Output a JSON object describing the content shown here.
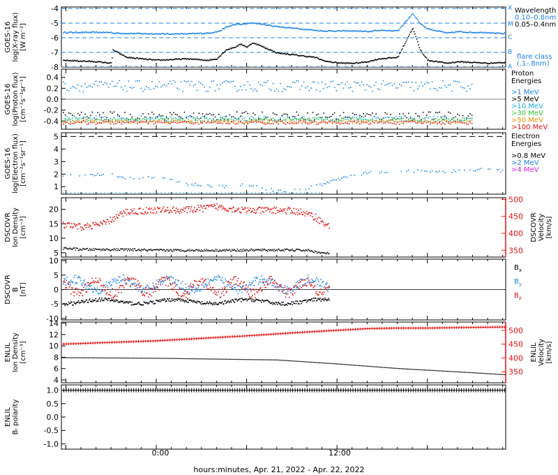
{
  "figure": {
    "xlabel": "hours:minutes, Apr. 21, 2022 - Apr. 22, 2022",
    "x_ticks": [
      "0:00",
      "12:00"
    ],
    "x_range_hours": [
      -6.3,
      23.2
    ]
  },
  "colors": {
    "black": "#000000",
    "blue": "#1b82e6",
    "cyan": "#17b3e6",
    "green": "#2ec83a",
    "orange": "#f08a00",
    "red": "#e01010",
    "magenta": "#e020e0",
    "dashed": "#1b82e6"
  },
  "chart_data": [
    {
      "type": "scatter",
      "ylabel": "GOES-16\nlog(X-ray flux)\n[W m⁻²]",
      "ylim": [
        -8,
        -3.9
      ],
      "yticks": [
        -8,
        -7,
        -6,
        -5,
        -4
      ],
      "flare_levels": [
        {
          "label": "X",
          "value": -4
        },
        {
          "label": "M",
          "value": -5
        },
        {
          "label": "C",
          "value": -6
        },
        {
          "label": "B",
          "value": -7
        },
        {
          "label": "A",
          "value": -8
        }
      ],
      "legend_title": "Wavelength",
      "legend_note": "flare class\n(.1-.8nm)",
      "series": [
        {
          "name": "0.10–0.8nm",
          "color": "blue",
          "x": [
            -6.2,
            -3.0,
            -2.9,
            -2.85,
            0.0,
            2.0,
            3.4,
            4.0,
            4.2,
            4.6,
            5.2,
            5.6,
            6.4,
            8.0,
            10.5,
            11.0,
            11.4,
            12.3,
            13.2,
            14.0,
            14.8,
            16.0,
            17.0,
            17.5,
            18.0,
            19.3,
            20.0,
            21.0,
            22.0,
            23.0,
            23.2
          ],
          "y": [
            -5.6,
            -5.6,
            -5.65,
            -5.65,
            -5.7,
            -5.7,
            -5.65,
            -5.55,
            -5.5,
            -5.25,
            -5.05,
            -5.05,
            -4.95,
            -5.2,
            -5.45,
            -5.5,
            -5.5,
            -5.5,
            -5.5,
            -5.55,
            -5.45,
            -5.5,
            -4.3,
            -5.0,
            -5.35,
            -5.65,
            -5.55,
            -5.6,
            -5.6,
            -5.7,
            -5.6
          ]
        },
        {
          "name": "0.05–0.4nm",
          "color": "black",
          "x": [
            -6.2,
            -4.0,
            -3.0,
            -2.9,
            -2.0,
            0.0,
            2.0,
            3.4,
            4.0,
            4.6,
            5.2,
            5.6,
            6.0,
            6.4,
            8.0,
            10.5,
            11.0,
            11.4,
            12.3,
            13.2,
            14.0,
            14.8,
            16.0,
            17.0,
            17.5,
            18.0,
            19.3,
            20.0,
            21.0,
            22.0,
            23.2
          ],
          "y": [
            -7.5,
            -7.6,
            -7.7,
            -6.8,
            -7.3,
            -7.5,
            -7.4,
            -7.5,
            -7.4,
            -6.8,
            -6.6,
            -6.4,
            -6.6,
            -6.3,
            -7.0,
            -7.3,
            -7.5,
            -7.6,
            -7.7,
            -7.7,
            -7.6,
            -7.4,
            -7.3,
            -5.3,
            -6.8,
            -7.5,
            -7.7,
            -7.6,
            -7.65,
            -7.7,
            -7.65
          ]
        }
      ]
    },
    {
      "type": "scatter",
      "ylabel": "GOES-16\nlog(Proton flux)\n[cm⁻²s⁻¹sr⁻¹]",
      "ylim": [
        -0.55,
        0.55
      ],
      "yticks": [
        -0.4,
        -0.2,
        0.0,
        0.2,
        0.4
      ],
      "legend_title": "Proton\nEnergies",
      "series": [
        {
          "name": ">1 MeV",
          "color": "blue",
          "level": 0.25,
          "spread": 0.1
        },
        {
          "name": ">5 MeV",
          "color": "black",
          "level": -0.3,
          "spread": 0.08
        },
        {
          "name": ">10 MeV",
          "color": "cyan",
          "level": -0.35,
          "spread": 0.05
        },
        {
          "name": ">30 MeV",
          "color": "green",
          "level": -0.37,
          "spread": 0.04
        },
        {
          "name": ">50 MeV",
          "color": "orange",
          "level": -0.4,
          "spread": 0.03
        },
        {
          "name": ">100 MeV",
          "color": "red",
          "level": -0.42,
          "spread": 0.03
        }
      ]
    },
    {
      "type": "scatter",
      "ylabel": "GOES-16\nlog(Electron flux)\n[cm⁻²s⁻¹sr⁻¹]",
      "ylim": [
        0.4,
        5.3
      ],
      "yticks": [
        1,
        2,
        3,
        4,
        5
      ],
      "threshold": 5,
      "legend_title": "Electron\nEnergies",
      "series": [
        {
          "name": ">0.8 MeV",
          "color": "black"
        },
        {
          "name": ">2 MeV",
          "color": "blue",
          "x": [
            -6.2,
            -3.0,
            -1.5,
            0.0,
            2.0,
            4.0,
            6.0,
            8.0,
            10.0,
            12.0,
            14.0,
            16.0,
            18.0,
            20.0,
            21.0,
            23.2
          ],
          "y": [
            1.9,
            2.0,
            1.6,
            1.8,
            1.3,
            1.0,
            1.2,
            0.7,
            0.9,
            1.6,
            2.2,
            2.3,
            2.25,
            2.3,
            2.4,
            2.3
          ]
        },
        {
          "name": ">4 MeV",
          "color": "magenta"
        }
      ]
    },
    {
      "type": "scatter",
      "ylabel": "DSCOVR\nIon Density\n[cm⁻³]",
      "ylabel_right": "DSCOVR\nVelocity\n[km/s]",
      "ylim": [
        3.5,
        24
      ],
      "yticks": [
        5,
        10,
        15,
        20
      ],
      "ylim_right": [
        330,
        505
      ],
      "yticks_right": [
        350,
        400,
        450,
        500
      ],
      "series": [
        {
          "name": "Density",
          "color": "black",
          "x": [
            -6.2,
            -5.0,
            -2.0,
            0.0,
            4.0,
            8.0,
            10.0,
            11.0,
            11.5
          ],
          "y": [
            6.7,
            6.3,
            6.2,
            6.0,
            6.0,
            6.1,
            6.0,
            5.0,
            4.9
          ]
        },
        {
          "name": "Velocity",
          "color": "red",
          "x": [
            -6.2,
            -5.0,
            -3.5,
            -2.0,
            0.0,
            2.0,
            4.0,
            6.0,
            8.0,
            9.5,
            10.5,
            11.5
          ],
          "y": [
            425,
            420,
            430,
            465,
            470,
            470,
            480,
            468,
            470,
            465,
            450,
            418
          ]
        }
      ]
    },
    {
      "type": "scatter",
      "ylabel": "DSCOVR\nB\n[nT]",
      "ylim": [
        -10.5,
        10.5
      ],
      "yticks": [
        -10,
        -5,
        0,
        5,
        10
      ],
      "series": [
        {
          "name": "Bx",
          "color": "black",
          "level": -4,
          "spread": 1.2
        },
        {
          "name": "By",
          "color": "blue",
          "level": 2,
          "spread": 3
        },
        {
          "name": "Bz",
          "color": "red",
          "level": 1,
          "spread": 3.5
        }
      ]
    },
    {
      "type": "line",
      "ylabel": "ENLIL\nIon Density\n[cm⁻³]",
      "ylabel_right": "ENLIL\nVelocity\n[km/s]",
      "ylim": [
        3.5,
        14.2
      ],
      "yticks": [
        4,
        6,
        8,
        10,
        12,
        14
      ],
      "ylim_right": [
        310,
        530
      ],
      "yticks_right": [
        350,
        400,
        450,
        500
      ],
      "series": [
        {
          "name": "Density",
          "color": "black",
          "x": [
            -6.3,
            0.0,
            8.0,
            12.0,
            16.0,
            20.0,
            23.2
          ],
          "y": [
            8.0,
            7.9,
            7.6,
            6.9,
            6.1,
            5.5,
            5.0
          ]
        },
        {
          "name": "Velocity",
          "color": "red",
          "x": [
            -6.3,
            0.0,
            6.0,
            10.0,
            14.0,
            16.0,
            18.0,
            20.0,
            23.2
          ],
          "y": [
            450,
            462,
            480,
            494,
            506,
            508,
            508,
            510,
            512
          ]
        }
      ]
    },
    {
      "type": "line",
      "ylabel": "ENLIL\nBᵣ polarity",
      "ylim": [
        -1.2,
        1.2
      ],
      "yticks": [
        -1.0,
        -0.5,
        0.0,
        0.5,
        1.0
      ],
      "series": [
        {
          "name": "Br polarity",
          "color": "black",
          "x": [
            -6.3,
            23.2
          ],
          "y": [
            1.0,
            1.0
          ]
        }
      ]
    }
  ],
  "legends": {
    "xray": {
      "title": "Wavelength",
      "items": [
        "0.10–0.8nm",
        "0.05–0.4nm"
      ],
      "note1": "flare class",
      "note2": "(.1-.8nm)"
    },
    "proton": {
      "title1": "Proton",
      "title2": "Energies",
      "items": [
        ">1 MeV",
        ">5 MeV",
        ">10 MeV",
        ">30 MeV",
        ">50 MeV",
        ">100 MeV"
      ]
    },
    "electron": {
      "title1": "Electron",
      "title2": "Energies",
      "items": [
        ">0.8 MeV",
        ">2 MeV",
        ">4 MeV"
      ]
    },
    "mag": {
      "items": [
        "B",
        "B",
        "B"
      ],
      "subs": [
        "x",
        "y",
        "z"
      ]
    }
  },
  "flare_labels": [
    "X",
    "M",
    "C",
    "B",
    "A"
  ]
}
